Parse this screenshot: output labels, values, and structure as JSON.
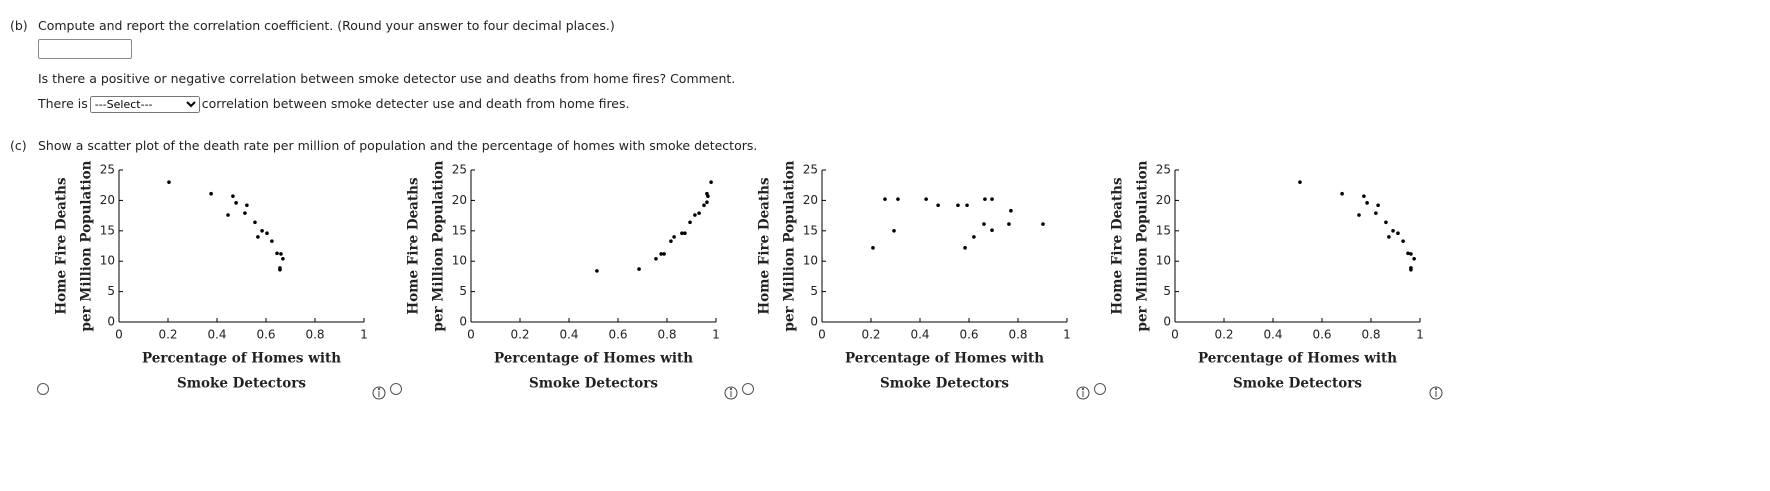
{
  "part_b": {
    "label": "(b)",
    "question": "Compute and report the correlation coefficient. (Round your answer to four decimal places.)",
    "follow_up": "Is there a positive or negative correlation between smoke detector use and deaths from home fires? Comment.",
    "sentence_start": "There is",
    "select_placeholder": "---Select---",
    "sentence_end": "correlation between smoke detecter use and death from home fires."
  },
  "part_c": {
    "label": "(c)",
    "question": "Show a scatter plot of the death rate per million of population and the percentage of homes with smoke detectors."
  },
  "chart_data": [
    {
      "type": "scatter",
      "color": "#000000",
      "x": [
        0.204,
        0.376,
        0.465,
        0.478,
        0.522,
        0.445,
        0.514,
        0.555,
        0.584,
        0.567,
        0.604,
        0.624,
        0.645,
        0.661,
        0.669,
        0.657,
        0.657
      ],
      "values": [
        23.0,
        21.1,
        20.7,
        19.6,
        19.2,
        17.6,
        17.9,
        16.4,
        15.0,
        14.0,
        14.6,
        13.3,
        11.3,
        11.2,
        10.4,
        8.9,
        8.6
      ],
      "xlim": [
        0,
        1
      ],
      "ylim": [
        0,
        25
      ],
      "xticks": [
        0,
        0.2,
        0.4,
        0.6,
        0.8,
        1
      ],
      "yticks": [
        0,
        5,
        10,
        15,
        20,
        25
      ],
      "x_label": [
        "Percentage of Homes with",
        "Smoke Detectors"
      ],
      "y_label": [
        "Home Fire Deaths",
        "per Million Population"
      ]
    },
    {
      "type": "scatter",
      "color": "#000000",
      "x": [
        0.514,
        0.686,
        0.755,
        0.776,
        0.788,
        0.816,
        0.829,
        0.861,
        0.873,
        0.894,
        0.914,
        0.931,
        0.951,
        0.963,
        0.963,
        0.967,
        0.98
      ],
      "values": [
        8.4,
        8.7,
        10.4,
        11.2,
        11.2,
        13.3,
        14.0,
        14.6,
        14.6,
        16.4,
        17.6,
        17.9,
        19.2,
        19.7,
        21.1,
        20.7,
        23.0
      ],
      "xlim": [
        0,
        1
      ],
      "ylim": [
        0,
        25
      ],
      "xticks": [
        0,
        0.2,
        0.4,
        0.6,
        0.8,
        1
      ],
      "yticks": [
        0,
        5,
        10,
        15,
        20,
        25
      ],
      "x_label": [
        "Percentage of Homes with",
        "Smoke Detectors"
      ],
      "y_label": [
        "Home Fire Deaths",
        "per Million Population"
      ]
    },
    {
      "type": "scatter",
      "color": "#000000",
      "x": [
        0.208,
        0.257,
        0.294,
        0.31,
        0.425,
        0.474,
        0.555,
        0.592,
        0.584,
        0.62,
        0.661,
        0.665,
        0.694,
        0.694,
        0.763,
        0.771,
        0.902
      ],
      "values": [
        12.2,
        20.2,
        15.0,
        20.2,
        20.2,
        19.2,
        19.2,
        19.2,
        12.2,
        14.0,
        16.1,
        20.2,
        20.2,
        15.1,
        16.1,
        18.3,
        16.1
      ],
      "xlim": [
        0,
        1
      ],
      "ylim": [
        0,
        25
      ],
      "xticks": [
        0,
        0.2,
        0.4,
        0.6,
        0.8,
        1
      ],
      "yticks": [
        0,
        5,
        10,
        15,
        20,
        25
      ],
      "x_label": [
        "Percentage of Homes with",
        "Smoke Detectors"
      ],
      "y_label": [
        "Home Fire Deaths",
        "per Million Population"
      ]
    },
    {
      "type": "scatter",
      "color": "#000000",
      "x": [
        0.51,
        0.682,
        0.771,
        0.784,
        0.829,
        0.751,
        0.82,
        0.861,
        0.89,
        0.873,
        0.91,
        0.931,
        0.951,
        0.963,
        0.976,
        0.963,
        0.963
      ],
      "values": [
        23.0,
        21.1,
        20.7,
        19.6,
        19.2,
        17.6,
        17.9,
        16.4,
        15.0,
        14.0,
        14.6,
        13.3,
        11.3,
        11.2,
        10.4,
        8.9,
        8.6
      ],
      "xlim": [
        0,
        1
      ],
      "ylim": [
        0,
        25
      ],
      "xticks": [
        0,
        0.2,
        0.4,
        0.6,
        0.8,
        1
      ],
      "yticks": [
        0,
        5,
        10,
        15,
        20,
        25
      ],
      "x_label": [
        "Percentage of Homes with",
        "Smoke Detectors"
      ],
      "y_label": [
        "Home Fire Deaths",
        "per Million Population"
      ]
    }
  ]
}
